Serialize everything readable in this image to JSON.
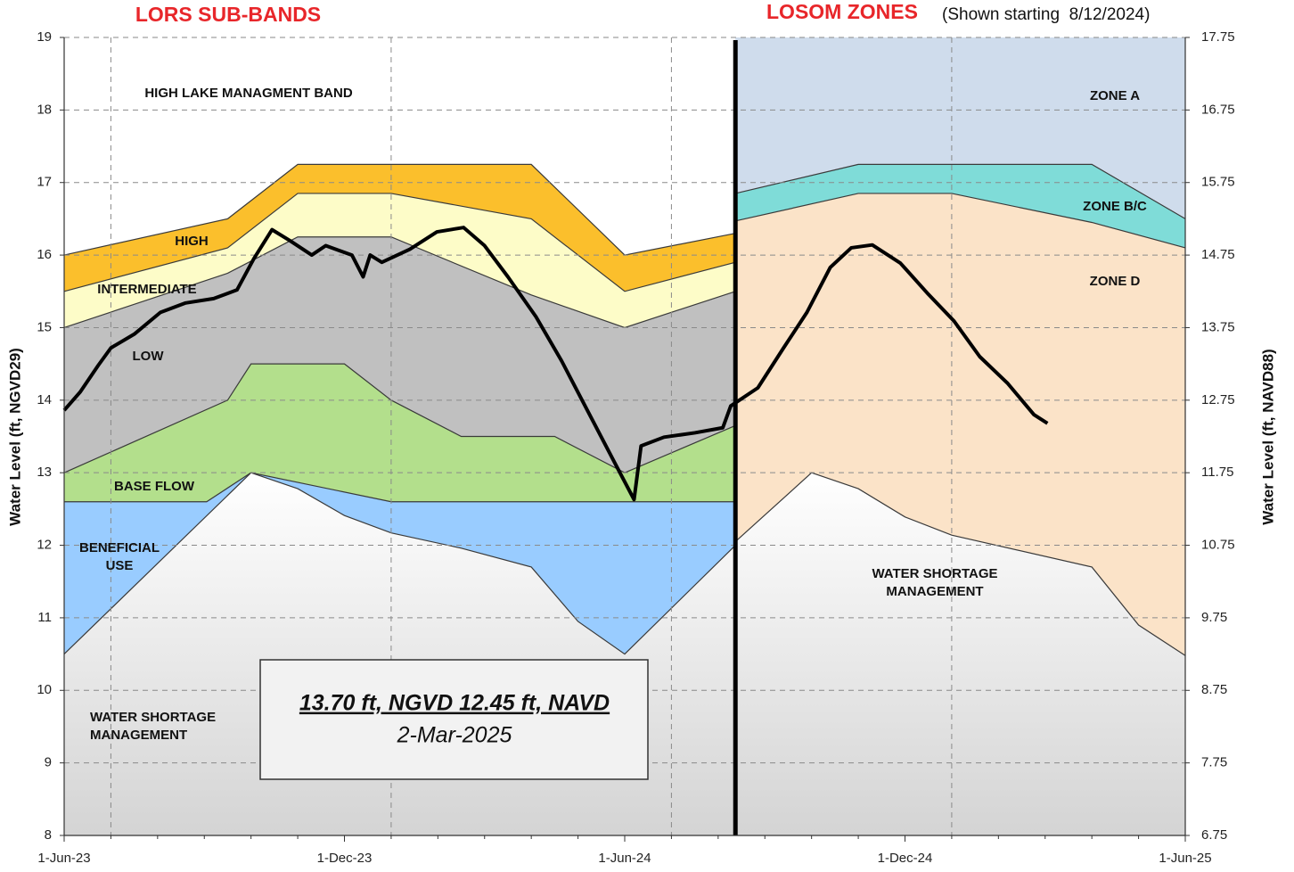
{
  "chart_data": {
    "type": "area",
    "titles": {
      "lors": "LORS SUB-BANDS",
      "losom": "LOSOM ZONES",
      "losom_note": "(Shown starting  8/12/2024)"
    },
    "ylabel": "Water Level (ft, NGVD29)",
    "y2label": "Water Level (ft, NAVD88)",
    "xlim": [
      0,
      24
    ],
    "xticks": [
      {
        "value": 0,
        "label": "1-Jun-23"
      },
      {
        "value": 6,
        "label": "1-Dec-23"
      },
      {
        "value": 12,
        "label": "1-Jun-24"
      },
      {
        "value": 18,
        "label": "1-Dec-24"
      },
      {
        "value": 24,
        "label": "1-Jun-25"
      }
    ],
    "x_grid": [
      1,
      7,
      13,
      19
    ],
    "ylim": [
      8,
      19
    ],
    "yticks": [
      8,
      9,
      10,
      11,
      12,
      13,
      14,
      15,
      16,
      17,
      18,
      19
    ],
    "y2lim": [
      6.75,
      17.75
    ],
    "y2ticks": [
      6.75,
      7.75,
      8.75,
      9.75,
      10.75,
      11.75,
      12.75,
      13.75,
      14.75,
      15.75,
      16.75,
      17.75
    ],
    "grid": true,
    "lors_bands": [
      {
        "name": [
          "HIGH LAKE MANAGMENT BAND"
        ],
        "color": "#ffffff"
      },
      {
        "name": [
          "HIGH"
        ],
        "color": "#fbbf2c",
        "x": [
          0,
          3.5,
          5,
          10,
          12,
          14.37
        ],
        "values": [
          16,
          16.5,
          17.25,
          17.25,
          16,
          16.3
        ]
      },
      {
        "name": [
          "INTERMEDIATE"
        ],
        "color": "#fdfcc8",
        "x": [
          0,
          3.5,
          5,
          7,
          10,
          12,
          14.37
        ],
        "values": [
          15.5,
          16.1,
          16.85,
          16.85,
          16.5,
          15.5,
          15.9
        ]
      },
      {
        "name": [
          "LOW"
        ],
        "color": "#c0c0c0",
        "x": [
          0,
          3.5,
          5,
          7,
          10,
          12,
          14.37
        ],
        "values": [
          15,
          15.75,
          16.25,
          16.25,
          15.45,
          15,
          15.5
        ]
      },
      {
        "name": [
          "BASE FLOW"
        ],
        "color": "#b3df8c",
        "x": [
          0,
          3.5,
          4,
          6,
          7,
          8.5,
          10.5,
          12,
          14.37
        ],
        "values": [
          13,
          14,
          14.5,
          14.5,
          14,
          13.5,
          13.5,
          13,
          13.65
        ]
      },
      {
        "name": [
          "BENEFICIAL",
          "USE"
        ],
        "color": "#99ccff",
        "x": [
          0,
          3.05,
          4,
          7,
          14.37
        ],
        "values": [
          12.6,
          12.6,
          13,
          12.6,
          12.6
        ]
      },
      {
        "name": [
          "WATER SHORTAGE",
          "MANAGEMENT"
        ],
        "color": "#d4d4d4",
        "gradient": true,
        "x": [
          0,
          4,
          5,
          6,
          7,
          8.5,
          10,
          11,
          12,
          14.37
        ],
        "values": [
          10.5,
          13,
          12.78,
          12.41,
          12.17,
          11.96,
          11.7,
          10.95,
          10.5,
          12
        ]
      }
    ],
    "losom_zones": [
      {
        "name": [
          "ZONE A"
        ],
        "color": "#cfdcec"
      },
      {
        "name": [
          "ZONE B/C"
        ],
        "color": "#7fdcd8",
        "x": [
          14.37,
          17,
          22,
          24
        ],
        "values": [
          16.85,
          17.25,
          17.25,
          16.5
        ]
      },
      {
        "name": [
          "ZONE D"
        ],
        "color": "#fbe3c8",
        "x": [
          14.37,
          17,
          19,
          22,
          24
        ],
        "values": [
          16.47,
          16.85,
          16.85,
          16.45,
          16.1
        ]
      },
      {
        "name": [
          "WATER SHORTAGE",
          "MANAGEMENT"
        ],
        "color": "#d4d4d4",
        "gradient": true,
        "x": [
          14.37,
          16,
          17,
          18,
          19,
          22,
          23,
          24
        ],
        "values": [
          12.05,
          13,
          12.78,
          12.39,
          12.14,
          11.7,
          10.9,
          10.48
        ]
      }
    ],
    "water_level": {
      "color": "#000000",
      "x": [
        0,
        0.34,
        0.73,
        1.0,
        1.5,
        2.06,
        2.6,
        3.2,
        3.7,
        4.06,
        4.45,
        4.83,
        5.3,
        5.6,
        6.16,
        6.4,
        6.55,
        6.8,
        7.4,
        7.98,
        8.55,
        9.0,
        9.5,
        10.1,
        10.65,
        11.2,
        11.8,
        12.2,
        12.35,
        12.84,
        13.5,
        14.1,
        14.27,
        14.85,
        15.4,
        15.9,
        16.4,
        16.85,
        17.3,
        17.9,
        18.5,
        19.05,
        19.6,
        20.2,
        20.76,
        21.05
      ],
      "values": [
        13.86,
        14.11,
        14.48,
        14.72,
        14.91,
        15.21,
        15.34,
        15.4,
        15.52,
        15.95,
        16.35,
        16.2,
        16.0,
        16.13,
        16.0,
        15.7,
        16.0,
        15.9,
        16.08,
        16.32,
        16.38,
        16.13,
        15.7,
        15.15,
        14.54,
        13.86,
        13.12,
        12.63,
        13.37,
        13.49,
        13.55,
        13.62,
        13.92,
        14.17,
        14.72,
        15.21,
        15.83,
        16.1,
        16.14,
        15.89,
        15.46,
        15.09,
        14.6,
        14.23,
        13.8,
        13.68
      ]
    },
    "readout": {
      "line1": "13.70 ft, NGVD 12.45 ft, NAVD",
      "line2": "2-Mar-2025"
    }
  }
}
